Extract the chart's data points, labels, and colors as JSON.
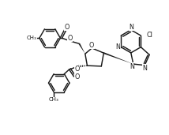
{
  "background": "#ffffff",
  "line_color": "#1a1a1a",
  "line_width": 1.05,
  "figsize": [
    2.14,
    1.71
  ],
  "dpi": 100,
  "xlim": [
    0,
    10
  ],
  "ylim": [
    0,
    8
  ]
}
